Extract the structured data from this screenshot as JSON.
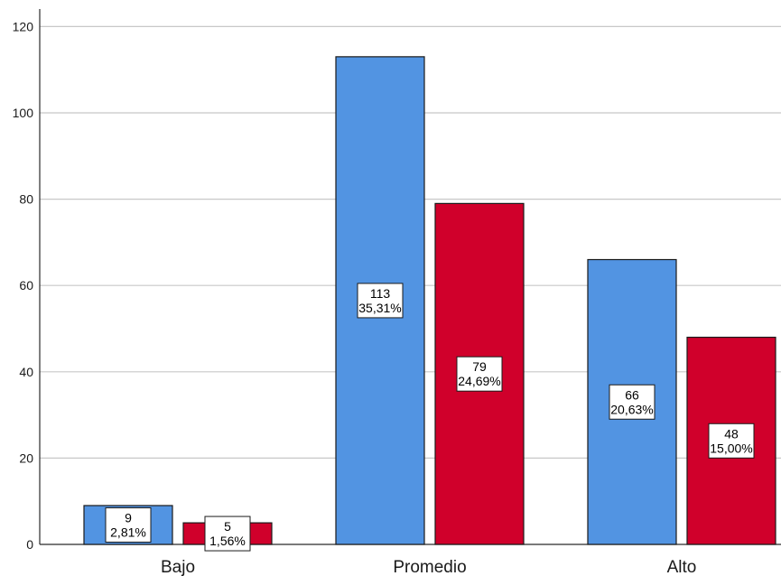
{
  "chart_data": {
    "type": "bar",
    "categories": [
      "Bajo",
      "Promedio",
      "Alto"
    ],
    "series": [
      {
        "values": [
          9,
          113,
          66
        ],
        "percent_labels": [
          "2,81%",
          "35,31%",
          "20,63%"
        ],
        "color": "#5294e2"
      },
      {
        "values": [
          5,
          79,
          48
        ],
        "percent_labels": [
          "1,56%",
          "24,69%",
          "15,00%"
        ],
        "color": "#d0002b"
      }
    ],
    "title": "",
    "xlabel": "",
    "ylabel": "",
    "ylim": [
      0,
      120
    ],
    "yticks": [
      0,
      20,
      40,
      60,
      80,
      100,
      120
    ],
    "grid": true,
    "legend": "none"
  }
}
